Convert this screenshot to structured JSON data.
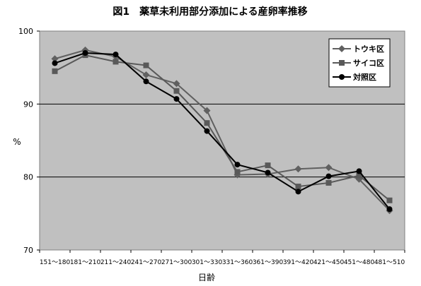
{
  "chart_data": {
    "type": "line",
    "title": "図1　薬草未利用部分添加による産卵率推移",
    "xlabel": "日齢",
    "ylabel": "%",
    "ylim": [
      70,
      100
    ],
    "yticks": [
      "70",
      "80",
      "90",
      "100"
    ],
    "categories": [
      "151～180",
      "181～210",
      "211～240",
      "241～270",
      "271～300",
      "301～330",
      "331～360",
      "361～390",
      "391～420",
      "421～450",
      "451～480",
      "481～510"
    ],
    "grid": true,
    "legend_position": "top-right",
    "series": [
      {
        "name": "トウキ区",
        "marker": "diamond",
        "color": "#606060",
        "values": [
          96.2,
          97.4,
          96.5,
          94.0,
          92.8,
          89.1,
          80.3,
          80.4,
          81.1,
          81.3,
          79.7,
          75.4
        ]
      },
      {
        "name": "サイコ区",
        "marker": "square",
        "color": "#595959",
        "values": [
          94.5,
          96.7,
          95.8,
          95.3,
          91.8,
          87.4,
          80.7,
          81.6,
          78.7,
          79.2,
          80.2,
          76.8
        ]
      },
      {
        "name": "対照区",
        "marker": "circle",
        "color": "#000000",
        "values": [
          95.6,
          97.0,
          96.8,
          93.1,
          90.7,
          86.3,
          81.7,
          80.6,
          78.0,
          80.1,
          80.8,
          75.6
        ]
      }
    ]
  }
}
